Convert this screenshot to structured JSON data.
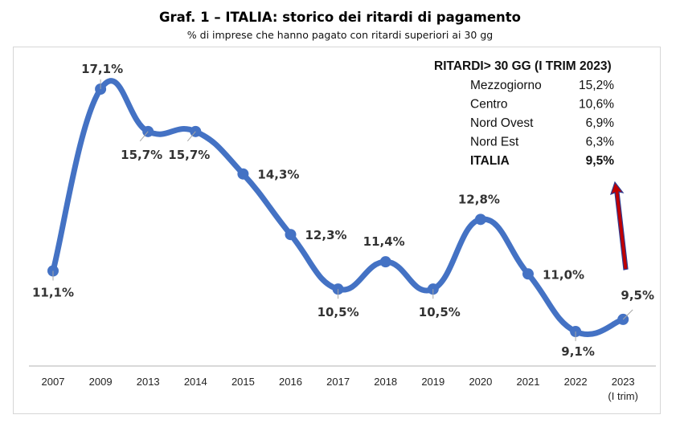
{
  "chart_data": {
    "type": "line",
    "title": "Graf. 1 – ITALIA: storico dei ritardi di pagamento",
    "subtitle": "% di imprese che hanno pagato con ritardi superiori ai 30 gg",
    "xlabel": "",
    "ylabel": "",
    "ylim": [
      8,
      18
    ],
    "grid": false,
    "categories": [
      "2007",
      "2009",
      "2013",
      "2014",
      "2015",
      "2016",
      "2017",
      "2018",
      "2019",
      "2020",
      "2021",
      "2022",
      "2023"
    ],
    "category_sublabels": [
      "",
      "",
      "",
      "",
      "",
      "",
      "",
      "",
      "",
      "",
      "",
      "",
      "(I trim)"
    ],
    "series": [
      {
        "name": "Ritardi > 30 gg",
        "color": "#4472C4",
        "values": [
          11.1,
          17.1,
          15.7,
          15.7,
          14.3,
          12.3,
          10.5,
          11.4,
          10.5,
          12.8,
          11.0,
          9.1,
          9.5
        ],
        "data_labels": [
          "11,1%",
          "17,1%",
          "15,7%",
          "15,7%",
          "14,3%",
          "12,3%",
          "10,5%",
          "11,4%",
          "10,5%",
          "12,8%",
          "11,0%",
          "9,1%",
          "9,5%"
        ]
      }
    ],
    "annotation_box": {
      "title": "RITARDI> 30 GG (I TRIM 2023)",
      "rows": [
        {
          "area": "Mezzogiorno",
          "value": "15,2%",
          "bold": false
        },
        {
          "area": "Centro",
          "value": "10,6%",
          "bold": false
        },
        {
          "area": "Nord Ovest",
          "value": "6,9%",
          "bold": false
        },
        {
          "area": "Nord Est",
          "value": "6,3%",
          "bold": false
        },
        {
          "area": "ITALIA",
          "value": "9,5%",
          "bold": true
        }
      ]
    },
    "arrow": {
      "direction": "up",
      "color": "#C00000",
      "outline": "#2F3B8F"
    }
  }
}
